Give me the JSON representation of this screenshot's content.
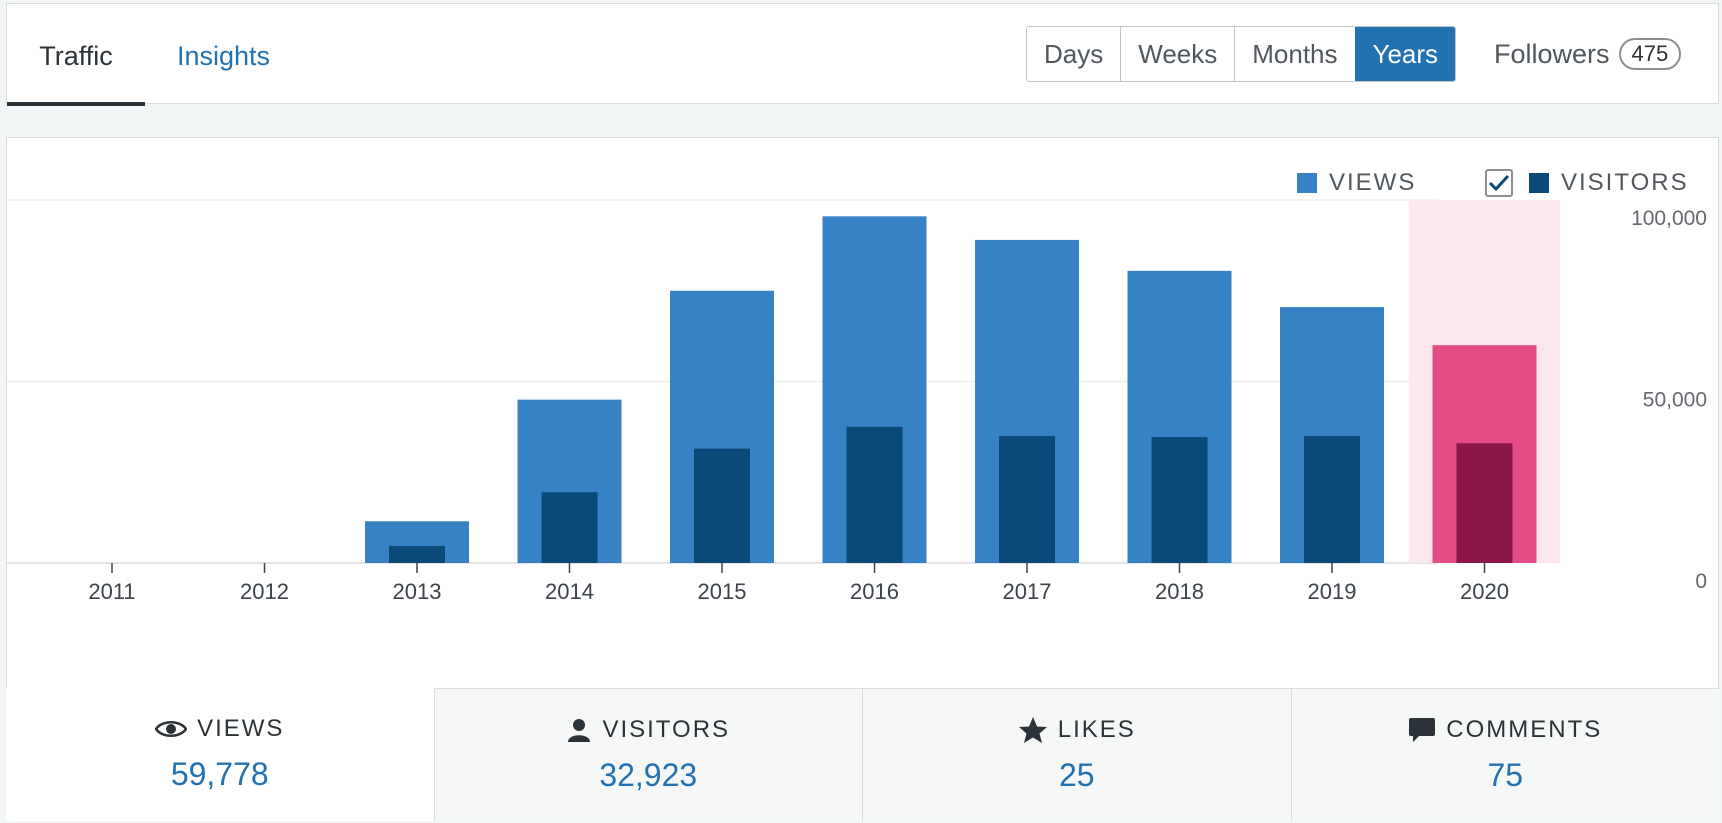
{
  "nav": {
    "tabs": [
      {
        "label": "Traffic",
        "active": true
      },
      {
        "label": "Insights",
        "active": false
      }
    ],
    "periods": [
      "Days",
      "Weeks",
      "Months",
      "Years"
    ],
    "active_period": "Years",
    "followers_label": "Followers",
    "followers_count": "475"
  },
  "legend": {
    "views_label": "VIEWS",
    "visitors_label": "VISITORS",
    "visitors_checked": true
  },
  "colors": {
    "views": "#3682c4",
    "visitors": "#0b4a78",
    "views_selected": "#e34c84",
    "visitors_selected": "#8c1749",
    "selected_band": "#fbe8ee",
    "accent": "#2271b1"
  },
  "chart_data": {
    "type": "bar",
    "categories": [
      "2011",
      "2012",
      "2013",
      "2014",
      "2015",
      "2016",
      "2017",
      "2018",
      "2019",
      "2020"
    ],
    "series": [
      {
        "name": "VIEWS",
        "values": [
          0,
          0,
          11500,
          45000,
          75000,
          95500,
          89000,
          80500,
          70500,
          60000
        ]
      },
      {
        "name": "VISITORS",
        "values": [
          0,
          0,
          4700,
          19500,
          31500,
          37500,
          35000,
          34700,
          35000,
          33000
        ]
      }
    ],
    "selected_category": "2020",
    "ylim": [
      0,
      100000
    ],
    "yticks": [
      0,
      50000,
      100000
    ],
    "ytick_labels": [
      "0",
      "50,000",
      "100,000"
    ],
    "y_axis_side": "right"
  },
  "stats": [
    {
      "icon": "eye-icon",
      "label": "VIEWS",
      "value": "59,778"
    },
    {
      "icon": "person-icon",
      "label": "VISITORS",
      "value": "32,923"
    },
    {
      "icon": "star-icon",
      "label": "LIKES",
      "value": "25"
    },
    {
      "icon": "comment-icon",
      "label": "COMMENTS",
      "value": "75"
    }
  ]
}
